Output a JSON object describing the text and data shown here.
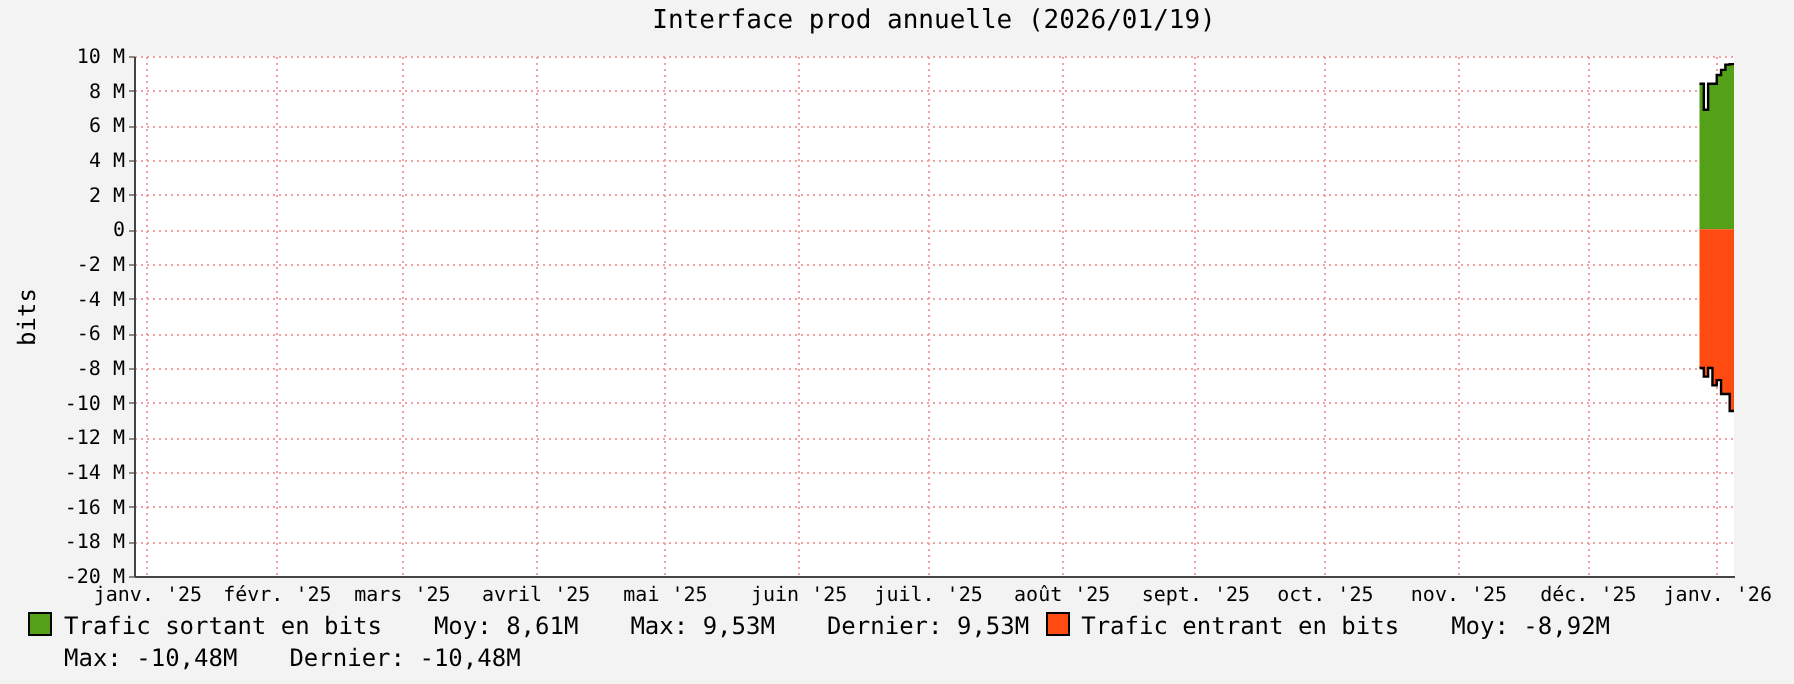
{
  "chart_data": {
    "type": "area",
    "title": "Interface prod annuelle (2026/01/19)",
    "ylabel": "bits",
    "x": [
      "2026-01-11",
      "2026-01-12",
      "2026-01-13",
      "2026-01-14",
      "2026-01-15",
      "2026-01-16",
      "2026-01-17",
      "2026-01-18",
      "2026-01-19"
    ],
    "series": [
      {
        "name": "Trafic sortant en bits",
        "color": "#54a019",
        "values": [
          8.4,
          6.9,
          8.4,
          8.4,
          8.9,
          9.2,
          9.5,
          9.53,
          9.53
        ]
      },
      {
        "name": "Trafic entrant en bits",
        "color": "#ff4a12",
        "values": [
          -8.0,
          -8.5,
          -8.0,
          -9.0,
          -8.7,
          -9.5,
          -9.5,
          -10.48,
          -10.48
        ]
      }
    ],
    "xlim": [
      "2025-01-13",
      "2026-01-19"
    ],
    "xticks": [
      {
        "value": "2025-01-16",
        "label": "janv. '25"
      },
      {
        "value": "2025-02-15",
        "label": "févr. '25"
      },
      {
        "value": "2025-03-16",
        "label": "mars '25"
      },
      {
        "value": "2025-04-16",
        "label": "avril '25"
      },
      {
        "value": "2025-05-16",
        "label": "mai '25"
      },
      {
        "value": "2025-06-16",
        "label": "juin '25"
      },
      {
        "value": "2025-07-16",
        "label": "juil. '25"
      },
      {
        "value": "2025-08-16",
        "label": "août '25"
      },
      {
        "value": "2025-09-16",
        "label": "sept. '25"
      },
      {
        "value": "2025-10-16",
        "label": "oct. '25"
      },
      {
        "value": "2025-11-16",
        "label": "nov. '25"
      },
      {
        "value": "2025-12-16",
        "label": "déc. '25"
      },
      {
        "value": "2026-01-15",
        "label": "janv. '26"
      }
    ],
    "ylim": [
      -20,
      10
    ],
    "yticks": [
      {
        "value": -20,
        "label": "-20 M"
      },
      {
        "value": -18,
        "label": "-18 M"
      },
      {
        "value": -16,
        "label": "-16 M"
      },
      {
        "value": -14,
        "label": "-14 M"
      },
      {
        "value": -12,
        "label": "-12 M"
      },
      {
        "value": -10,
        "label": "-10 M"
      },
      {
        "value": -8,
        "label": "-8 M"
      },
      {
        "value": -6,
        "label": "-6 M"
      },
      {
        "value": -4,
        "label": "-4 M"
      },
      {
        "value": -2,
        "label": "-2 M"
      },
      0,
      {
        "value": 2,
        "label": "2 M"
      },
      {
        "value": 4,
        "label": "4 M"
      },
      {
        "value": 6,
        "label": "6 M"
      },
      {
        "value": 8,
        "label": "8 M"
      },
      {
        "value": 10,
        "label": "10 M"
      }
    ],
    "grid": true,
    "legend": "bottom",
    "annotations": [
      "Moy: 8,61M",
      "Max: 9,53M",
      "Dernier: 9,53M",
      "Moy: -8,92M",
      "Max: -10,48M",
      "Dernier: -10,48M"
    ]
  }
}
